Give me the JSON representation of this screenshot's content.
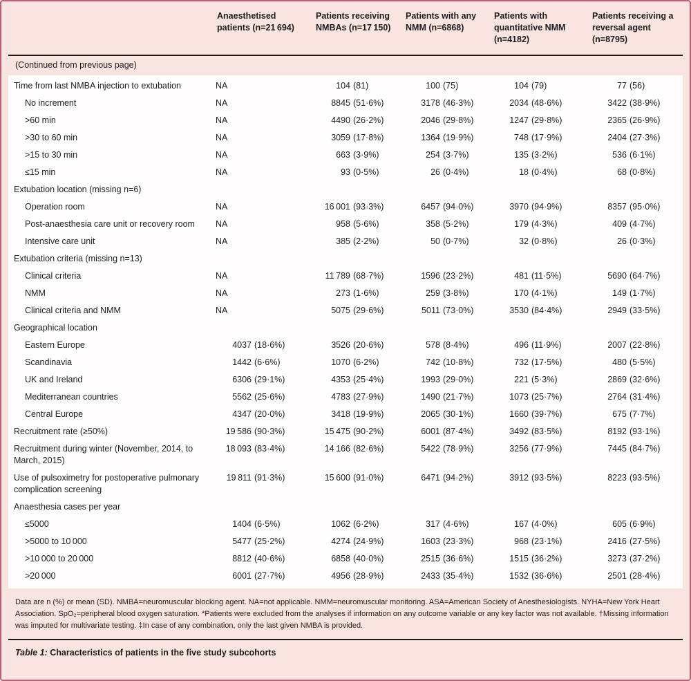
{
  "colors": {
    "pink_background": "#f9e4df",
    "frame_border": "#bd5f74",
    "black_rule": "#1a1a1a",
    "text": "#1d1d1d",
    "body_background": "#fffdfd"
  },
  "table": {
    "continued_note": "(Continued from previous page)",
    "columns": [
      "Anaesthetised patients (n=21 694)",
      "Patients receiving NMBAs (n=17 150)",
      "Patients with any NMM (n=6868)",
      "Patients with quantitative NMM (n=4182)",
      "Patients receiving a reversal agent (n=8795)"
    ],
    "rows": [
      {
        "label": "Time from last NMBA injection to extubation",
        "indent": 0,
        "section": false,
        "values": [
          "NA",
          "104 (81)",
          "100 (75)",
          "104 (79)",
          "77 (56)"
        ]
      },
      {
        "label": "No increment",
        "indent": 1,
        "section": false,
        "values": [
          "NA",
          "8845 (51·6%)",
          "3178 (46·3%)",
          "2034 (48·6%)",
          "3422 (38·9%)"
        ]
      },
      {
        "label": ">60 min",
        "indent": 1,
        "section": false,
        "values": [
          "NA",
          "4490 (26·2%)",
          "2046 (29·8%)",
          "1247 (29·8%)",
          "2365 (26·9%)"
        ]
      },
      {
        "label": ">30 to 60 min",
        "indent": 1,
        "section": false,
        "values": [
          "NA",
          "3059 (17·8%)",
          "1364 (19·9%)",
          "748 (17·9%)",
          "2404 (27·3%)"
        ]
      },
      {
        "label": ">15 to 30 min",
        "indent": 1,
        "section": false,
        "values": [
          "NA",
          "663 (3·9%)",
          "254 (3·7%)",
          "135 (3·2%)",
          "536 (6·1%)"
        ]
      },
      {
        "label": "≤15 min",
        "indent": 1,
        "section": false,
        "values": [
          "NA",
          "93 (0·5%)",
          "26 (0·4%)",
          "18 (0·4%)",
          "68 (0·8%)"
        ]
      },
      {
        "label": "Extubation location (missing n=6)",
        "indent": 0,
        "section": true,
        "values": [
          "",
          "",
          "",
          "",
          ""
        ]
      },
      {
        "label": "Operation room",
        "indent": 1,
        "section": false,
        "values": [
          "NA",
          "16 001 (93·3%)",
          "6457 (94·0%)",
          "3970 (94·9%)",
          "8357 (95·0%)"
        ]
      },
      {
        "label": "Post-anaesthesia care unit or recovery room",
        "indent": 1,
        "section": false,
        "values": [
          "NA",
          "958 (5·6%)",
          "358 (5·2%)",
          "179 (4·3%)",
          "409 (4·7%)"
        ]
      },
      {
        "label": "Intensive care unit",
        "indent": 1,
        "section": false,
        "values": [
          "NA",
          "385 (2·2%)",
          "50 (0·7%)",
          "32 (0·8%)",
          "26 (0·3%)"
        ]
      },
      {
        "label": "Extubation criteria (missing n=13)",
        "indent": 0,
        "section": true,
        "values": [
          "",
          "",
          "",
          "",
          ""
        ]
      },
      {
        "label": "Clinical criteria",
        "indent": 1,
        "section": false,
        "values": [
          "NA",
          "11 789 (68·7%)",
          "1596 (23·2%)",
          "481 (11·5%)",
          "5690 (64·7%)"
        ]
      },
      {
        "label": "NMM",
        "indent": 1,
        "section": false,
        "values": [
          "NA",
          "273 (1·6%)",
          "259 (3·8%)",
          "170 (4·1%)",
          "149 (1·7%)"
        ]
      },
      {
        "label": "Clinical criteria and NMM",
        "indent": 1,
        "section": false,
        "values": [
          "NA",
          "5075 (29·6%)",
          "5011 (73·0%)",
          "3530 (84·4%)",
          "2949 (33·5%)"
        ]
      },
      {
        "label": "Geographical location",
        "indent": 0,
        "section": true,
        "values": [
          "",
          "",
          "",
          "",
          ""
        ]
      },
      {
        "label": "Eastern Europe",
        "indent": 1,
        "section": false,
        "values": [
          "4037 (18·6%)",
          "3526 (20·6%)",
          "578 (8·4%)",
          "496 (11·9%)",
          "2007 (22·8%)"
        ]
      },
      {
        "label": "Scandinavia",
        "indent": 1,
        "section": false,
        "values": [
          "1442 (6·6%)",
          "1070 (6·2%)",
          "742 (10·8%)",
          "732 (17·5%)",
          "480 (5·5%)"
        ]
      },
      {
        "label": "UK and Ireland",
        "indent": 1,
        "section": false,
        "values": [
          "6306 (29·1%)",
          "4353 (25·4%)",
          "1993 (29·0%)",
          "221 (5·3%)",
          "2869 (32·6%)"
        ]
      },
      {
        "label": "Mediterranean countries",
        "indent": 1,
        "section": false,
        "values": [
          "5562 (25·6%)",
          "4783 (27·9%)",
          "1490 (21·7%)",
          "1073 (25·7%)",
          "2764 (31·4%)"
        ]
      },
      {
        "label": "Central Europe",
        "indent": 1,
        "section": false,
        "values": [
          "4347 (20·0%)",
          "3418 (19·9%)",
          "2065 (30·1%)",
          "1660 (39·7%)",
          "675 (7·7%)"
        ]
      },
      {
        "label": "Recruitment rate (≥50%)",
        "indent": 0,
        "section": false,
        "values": [
          "19 586 (90·3%)",
          "15 475 (90·2%)",
          "6001 (87·4%)",
          "3492 (83·5%)",
          "8192 (93·1%)"
        ]
      },
      {
        "label": "Recruitment during winter (November, 2014, to March, 2015)",
        "indent": 0,
        "section": false,
        "values": [
          "18 093 (83·4%)",
          "14 166 (82·6%)",
          "5422 (78·9%)",
          "3256 (77·9%)",
          "7445 (84·7%)"
        ]
      },
      {
        "label": "Use of pulsoximetry for postoperative pulmonary complication screening",
        "indent": 0,
        "section": false,
        "values": [
          "19 811 (91·3%)",
          "15 600 (91·0%)",
          "6471 (94·2%)",
          "3912 (93·5%)",
          "8223 (93·5%)"
        ]
      },
      {
        "label": "Anaesthesia cases per year",
        "indent": 0,
        "section": true,
        "values": [
          "",
          "",
          "",
          "",
          ""
        ]
      },
      {
        "label": "≤5000",
        "indent": 1,
        "section": false,
        "values": [
          "1404 (6·5%)",
          "1062 (6·2%)",
          "317 (4·6%)",
          "167 (4·0%)",
          "605 (6·9%)"
        ]
      },
      {
        "label": ">5000 to 10 000",
        "indent": 1,
        "section": false,
        "values": [
          "5477 (25·2%)",
          "4274 (24·9%)",
          "1603 (23·3%)",
          "968 (23·1%)",
          "2416 (27·5%)"
        ]
      },
      {
        "label": ">10 000 to 20 000",
        "indent": 1,
        "section": false,
        "values": [
          "8812 (40·6%)",
          "6858 (40·0%)",
          "2515 (36·6%)",
          "1515 (36·2%)",
          "3273 (37·2%)"
        ]
      },
      {
        "label": ">20 000",
        "indent": 1,
        "section": false,
        "values": [
          "6001 (27·7%)",
          "4956 (28·9%)",
          "2433 (35·4%)",
          "1532 (36·6%)",
          "2501 (28·4%)"
        ]
      }
    ],
    "notes": "Data are n (%) or mean (SD). NMBA=neuromuscular blocking agent. NA=not applicable. NMM=neuromuscular monitoring. ASA=American Society of Anesthesiologists. NYHA=New York Heart Association. SpO₂=peripheral blood oxygen saturation. *Patients were excluded from the analyses if information on any outcome variable or any key factor was not available. †Missing information was imputed for multivariate testing. ‡In case of any combination, only the last given NMBA is provided.",
    "caption_label": "Table 1:",
    "caption_text": "Characteristics of patients in the five study subcohorts"
  }
}
